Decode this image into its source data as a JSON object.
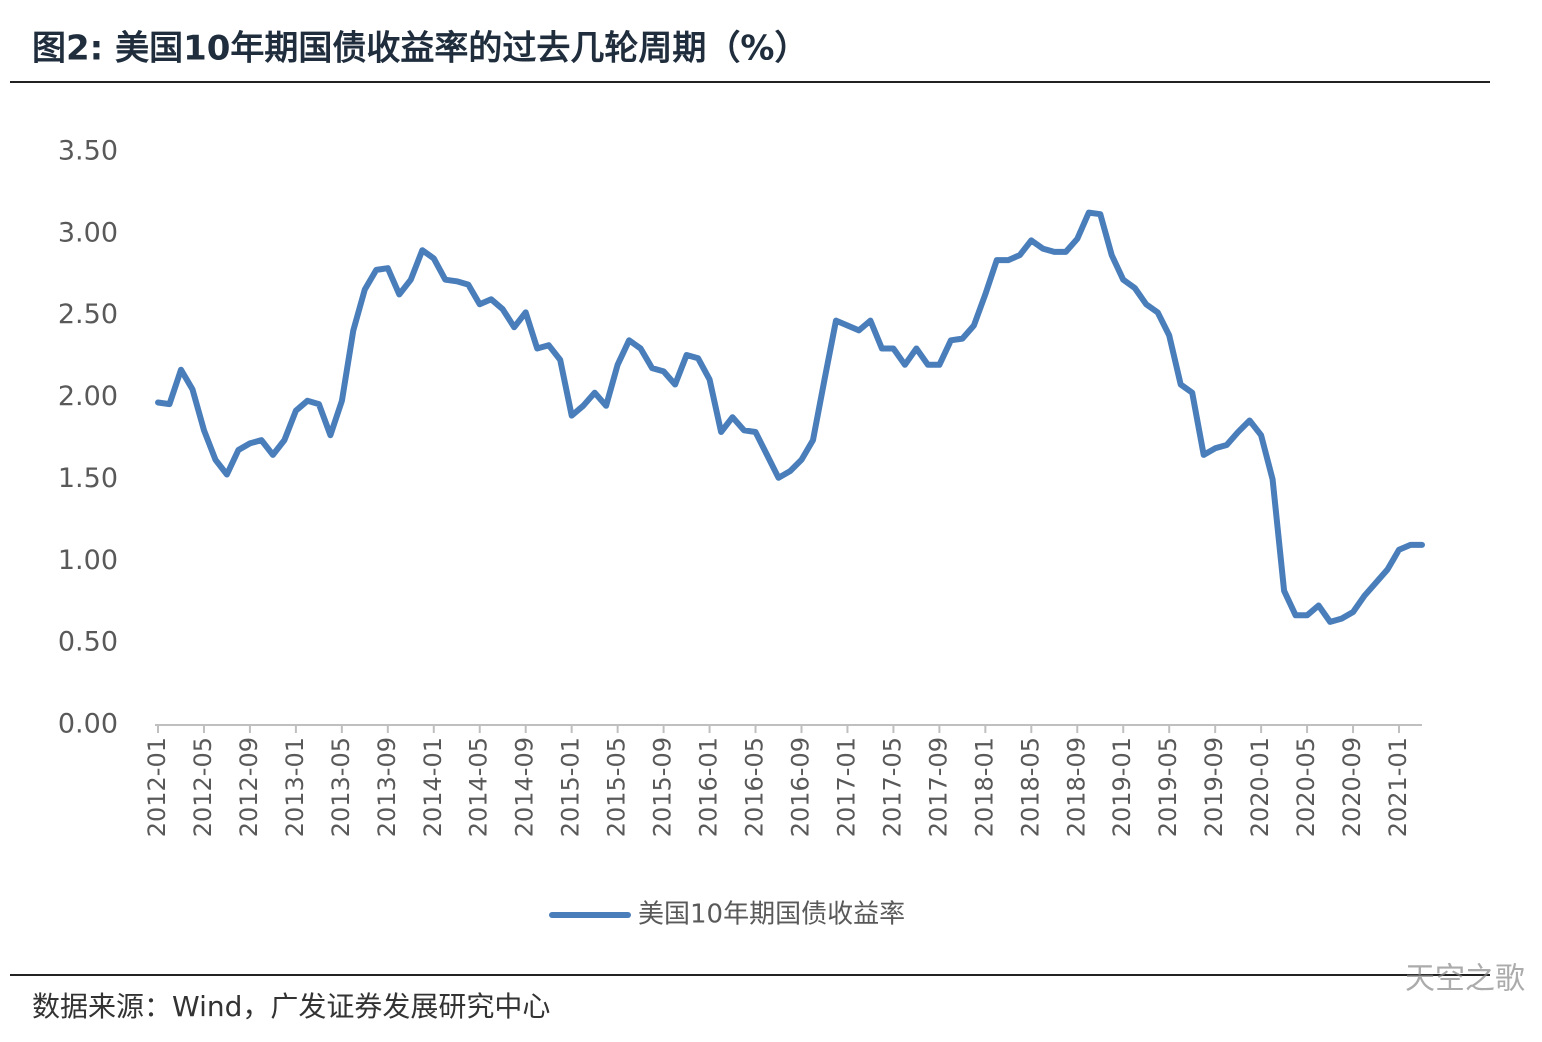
{
  "chart_data": {
    "type": "line",
    "title": "图2:  美国10年期国债收益率的过去几轮周期（%）",
    "source": "数据来源：Wind，广发证券发展研究中心",
    "watermark": "天空之歌",
    "categories": [
      "2012-01",
      null,
      null,
      null,
      "2012-05",
      null,
      null,
      null,
      "2012-09",
      null,
      null,
      null,
      "2013-01",
      null,
      null,
      null,
      "2013-05",
      null,
      null,
      null,
      "2013-09",
      null,
      null,
      null,
      "2014-01",
      null,
      null,
      null,
      "2014-05",
      null,
      null,
      null,
      "2014-09",
      null,
      null,
      null,
      "2015-01",
      null,
      null,
      null,
      "2015-05",
      null,
      null,
      null,
      "2015-09",
      null,
      null,
      null,
      "2016-01",
      null,
      null,
      null,
      "2016-05",
      null,
      null,
      null,
      "2016-09",
      null,
      null,
      null,
      "2017-01",
      null,
      null,
      null,
      "2017-05",
      null,
      null,
      null,
      "2017-09",
      null,
      null,
      null,
      "2018-01",
      null,
      null,
      null,
      "2018-05",
      null,
      null,
      null,
      "2018-09",
      null,
      null,
      null,
      "2019-01",
      null,
      null,
      null,
      "2019-05",
      null,
      null,
      null,
      "2019-09",
      null,
      null,
      null,
      "2020-01",
      null,
      null,
      null,
      "2020-05",
      null,
      null,
      null,
      "2020-09",
      null,
      null,
      null,
      "2021-01",
      null,
      null
    ],
    "series": [
      {
        "name": "美国10年期国债收益率",
        "color": "#4a7ebb",
        "values": [
          1.97,
          1.96,
          2.17,
          2.05,
          1.8,
          1.62,
          1.53,
          1.68,
          1.72,
          1.74,
          1.65,
          1.74,
          1.92,
          1.98,
          1.96,
          1.77,
          1.98,
          2.41,
          2.66,
          2.78,
          2.79,
          2.63,
          2.72,
          2.9,
          2.85,
          2.72,
          2.71,
          2.69,
          2.57,
          2.6,
          2.54,
          2.43,
          2.52,
          2.3,
          2.32,
          2.23,
          1.89,
          1.95,
          2.03,
          1.95,
          2.2,
          2.35,
          2.3,
          2.18,
          2.16,
          2.08,
          2.26,
          2.24,
          2.11,
          1.79,
          1.88,
          1.8,
          1.79,
          1.65,
          1.51,
          1.55,
          1.62,
          1.74,
          2.11,
          2.47,
          2.44,
          2.41,
          2.47,
          2.3,
          2.3,
          2.2,
          2.3,
          2.2,
          2.2,
          2.35,
          2.36,
          2.44,
          2.63,
          2.84,
          2.84,
          2.87,
          2.96,
          2.91,
          2.89,
          2.89,
          2.97,
          3.13,
          3.12,
          2.87,
          2.72,
          2.67,
          2.57,
          2.52,
          2.38,
          2.08,
          2.03,
          1.65,
          1.69,
          1.71,
          1.79,
          1.86,
          1.77,
          1.5,
          0.82,
          0.67,
          0.67,
          0.73,
          0.63,
          0.65,
          0.69,
          0.79,
          0.87,
          0.95,
          1.07,
          1.1,
          1.1
        ]
      }
    ],
    "ylim": [
      0,
      3.5
    ],
    "yticks": [
      {
        "value": 0,
        "label": "0.00"
      },
      {
        "value": 0.5,
        "label": "0.50"
      },
      {
        "value": 1,
        "label": "1.00"
      },
      {
        "value": 1.5,
        "label": "1.50"
      },
      {
        "value": 2,
        "label": "2.00"
      },
      {
        "value": 2.5,
        "label": "2.50"
      },
      {
        "value": 3,
        "label": "3.00"
      },
      {
        "value": 3.5,
        "label": "3.50"
      }
    ],
    "grid": false,
    "legend": "bottom"
  }
}
